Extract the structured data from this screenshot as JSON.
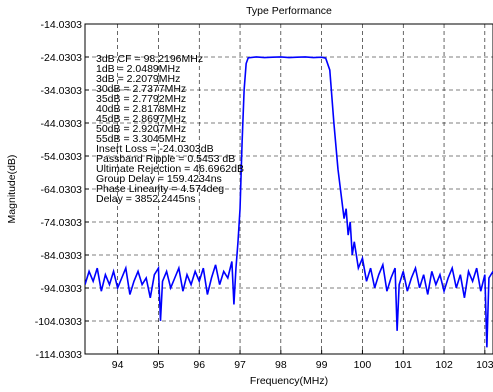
{
  "chart_data": {
    "type": "line",
    "title": "Type Performance",
    "xlabel": "Frequency(MHz)",
    "ylabel": "Magnitude(dB)",
    "xlim": [
      93.2,
      103.2
    ],
    "ylim": [
      -114.0303,
      -14.0303
    ],
    "grid": true,
    "line_color": "#0000ff",
    "x_ticks": [
      94,
      95,
      96,
      97,
      98,
      99,
      100,
      101,
      102,
      103
    ],
    "x_tick_labels": [
      "94",
      "95",
      "96",
      "97",
      "98",
      "99",
      "100",
      "101",
      "102",
      "103"
    ],
    "y_ticks": [
      -14.0303,
      -24.0303,
      -34.0303,
      -44.0303,
      -54.0303,
      -64.0303,
      -74.0303,
      -84.0303,
      -94.0303,
      -104.0303,
      -114.0303
    ],
    "y_tick_labels": [
      "-14.0303",
      "-24.0303",
      "-34.0303",
      "-44.0303",
      "-54.0303",
      "-64.0303",
      "-74.0303",
      "-84.0303",
      "-94.0303",
      "-104.0303",
      "-114.0303"
    ],
    "annotations": [
      "3dB CF = 98.2196MHz",
      "1dB = 2.0489MHz",
      "3dB = 2.2079MHz",
      "30dB = 2.7377MHz",
      "35dB = 2.7792MHz",
      "40dB = 2.8178MHz",
      "45dB = 2.8697MHz",
      "50dB = 2.9207MHz",
      "55dB = 3.3045MHz",
      "Insert Loss = -24.0303dB",
      "Passband Ripple = 0.5453 dB",
      "Ultimate Rejection = 46.6962dB",
      "Group Delay = 159.4234ns",
      "Phase Linearity = 4.574deg",
      "Delay = 3852.2445ns"
    ],
    "series": [
      {
        "values": [
          [
            93.2,
            -93
          ],
          [
            93.3,
            -89
          ],
          [
            93.4,
            -92
          ],
          [
            93.5,
            -88
          ],
          [
            93.6,
            -95
          ],
          [
            93.7,
            -90
          ],
          [
            93.8,
            -93
          ],
          [
            93.9,
            -89
          ],
          [
            94.0,
            -94
          ],
          [
            94.1,
            -91
          ],
          [
            94.2,
            -88
          ],
          [
            94.3,
            -96
          ],
          [
            94.4,
            -92
          ],
          [
            94.5,
            -89
          ],
          [
            94.6,
            -93
          ],
          [
            94.7,
            -91
          ],
          [
            94.8,
            -97
          ],
          [
            94.9,
            -90
          ],
          [
            95.0,
            -88
          ],
          [
            95.05,
            -104
          ],
          [
            95.1,
            -92
          ],
          [
            95.2,
            -89
          ],
          [
            95.3,
            -94
          ],
          [
            95.4,
            -91
          ],
          [
            95.5,
            -88
          ],
          [
            95.6,
            -95
          ],
          [
            95.7,
            -90
          ],
          [
            95.8,
            -93
          ],
          [
            95.9,
            -89
          ],
          [
            96.0,
            -92
          ],
          [
            96.1,
            -88
          ],
          [
            96.2,
            -96
          ],
          [
            96.3,
            -91
          ],
          [
            96.4,
            -87
          ],
          [
            96.5,
            -93
          ],
          [
            96.6,
            -89
          ],
          [
            96.7,
            -91
          ],
          [
            96.8,
            -86
          ],
          [
            96.85,
            -99
          ],
          [
            96.9,
            -88
          ],
          [
            96.95,
            -80
          ],
          [
            97.0,
            -70
          ],
          [
            97.05,
            -50
          ],
          [
            97.1,
            -34
          ],
          [
            97.15,
            -26
          ],
          [
            97.2,
            -24.3
          ],
          [
            97.4,
            -24.0
          ],
          [
            97.6,
            -24.2
          ],
          [
            97.8,
            -24.1
          ],
          [
            98.0,
            -24.0
          ],
          [
            98.2,
            -24.2
          ],
          [
            98.4,
            -24.1
          ],
          [
            98.6,
            -24.0
          ],
          [
            98.8,
            -24.2
          ],
          [
            99.0,
            -24.1
          ],
          [
            99.1,
            -24.4
          ],
          [
            99.2,
            -28
          ],
          [
            99.3,
            -44
          ],
          [
            99.4,
            -58
          ],
          [
            99.5,
            -68
          ],
          [
            99.55,
            -73
          ],
          [
            99.6,
            -70
          ],
          [
            99.65,
            -78
          ],
          [
            99.7,
            -74
          ],
          [
            99.75,
            -84
          ],
          [
            99.8,
            -80
          ],
          [
            99.9,
            -88
          ],
          [
            100.0,
            -85
          ],
          [
            100.1,
            -92
          ],
          [
            100.2,
            -88
          ],
          [
            100.3,
            -94
          ],
          [
            100.4,
            -90
          ],
          [
            100.5,
            -87
          ],
          [
            100.6,
            -95
          ],
          [
            100.7,
            -91
          ],
          [
            100.8,
            -88
          ],
          [
            100.85,
            -107
          ],
          [
            100.9,
            -93
          ],
          [
            101.0,
            -89
          ],
          [
            101.1,
            -95
          ],
          [
            101.2,
            -91
          ],
          [
            101.3,
            -88
          ],
          [
            101.4,
            -94
          ],
          [
            101.5,
            -90
          ],
          [
            101.6,
            -96
          ],
          [
            101.7,
            -89
          ],
          [
            101.8,
            -93
          ],
          [
            101.9,
            -90
          ],
          [
            102.0,
            -95
          ],
          [
            102.1,
            -91
          ],
          [
            102.2,
            -88
          ],
          [
            102.3,
            -94
          ],
          [
            102.4,
            -90
          ],
          [
            102.5,
            -97
          ],
          [
            102.6,
            -89
          ],
          [
            102.7,
            -92
          ],
          [
            102.8,
            -88
          ],
          [
            102.9,
            -95
          ],
          [
            103.0,
            -90
          ],
          [
            103.05,
            -112
          ],
          [
            103.1,
            -91
          ],
          [
            103.2,
            -89
          ]
        ]
      }
    ]
  }
}
